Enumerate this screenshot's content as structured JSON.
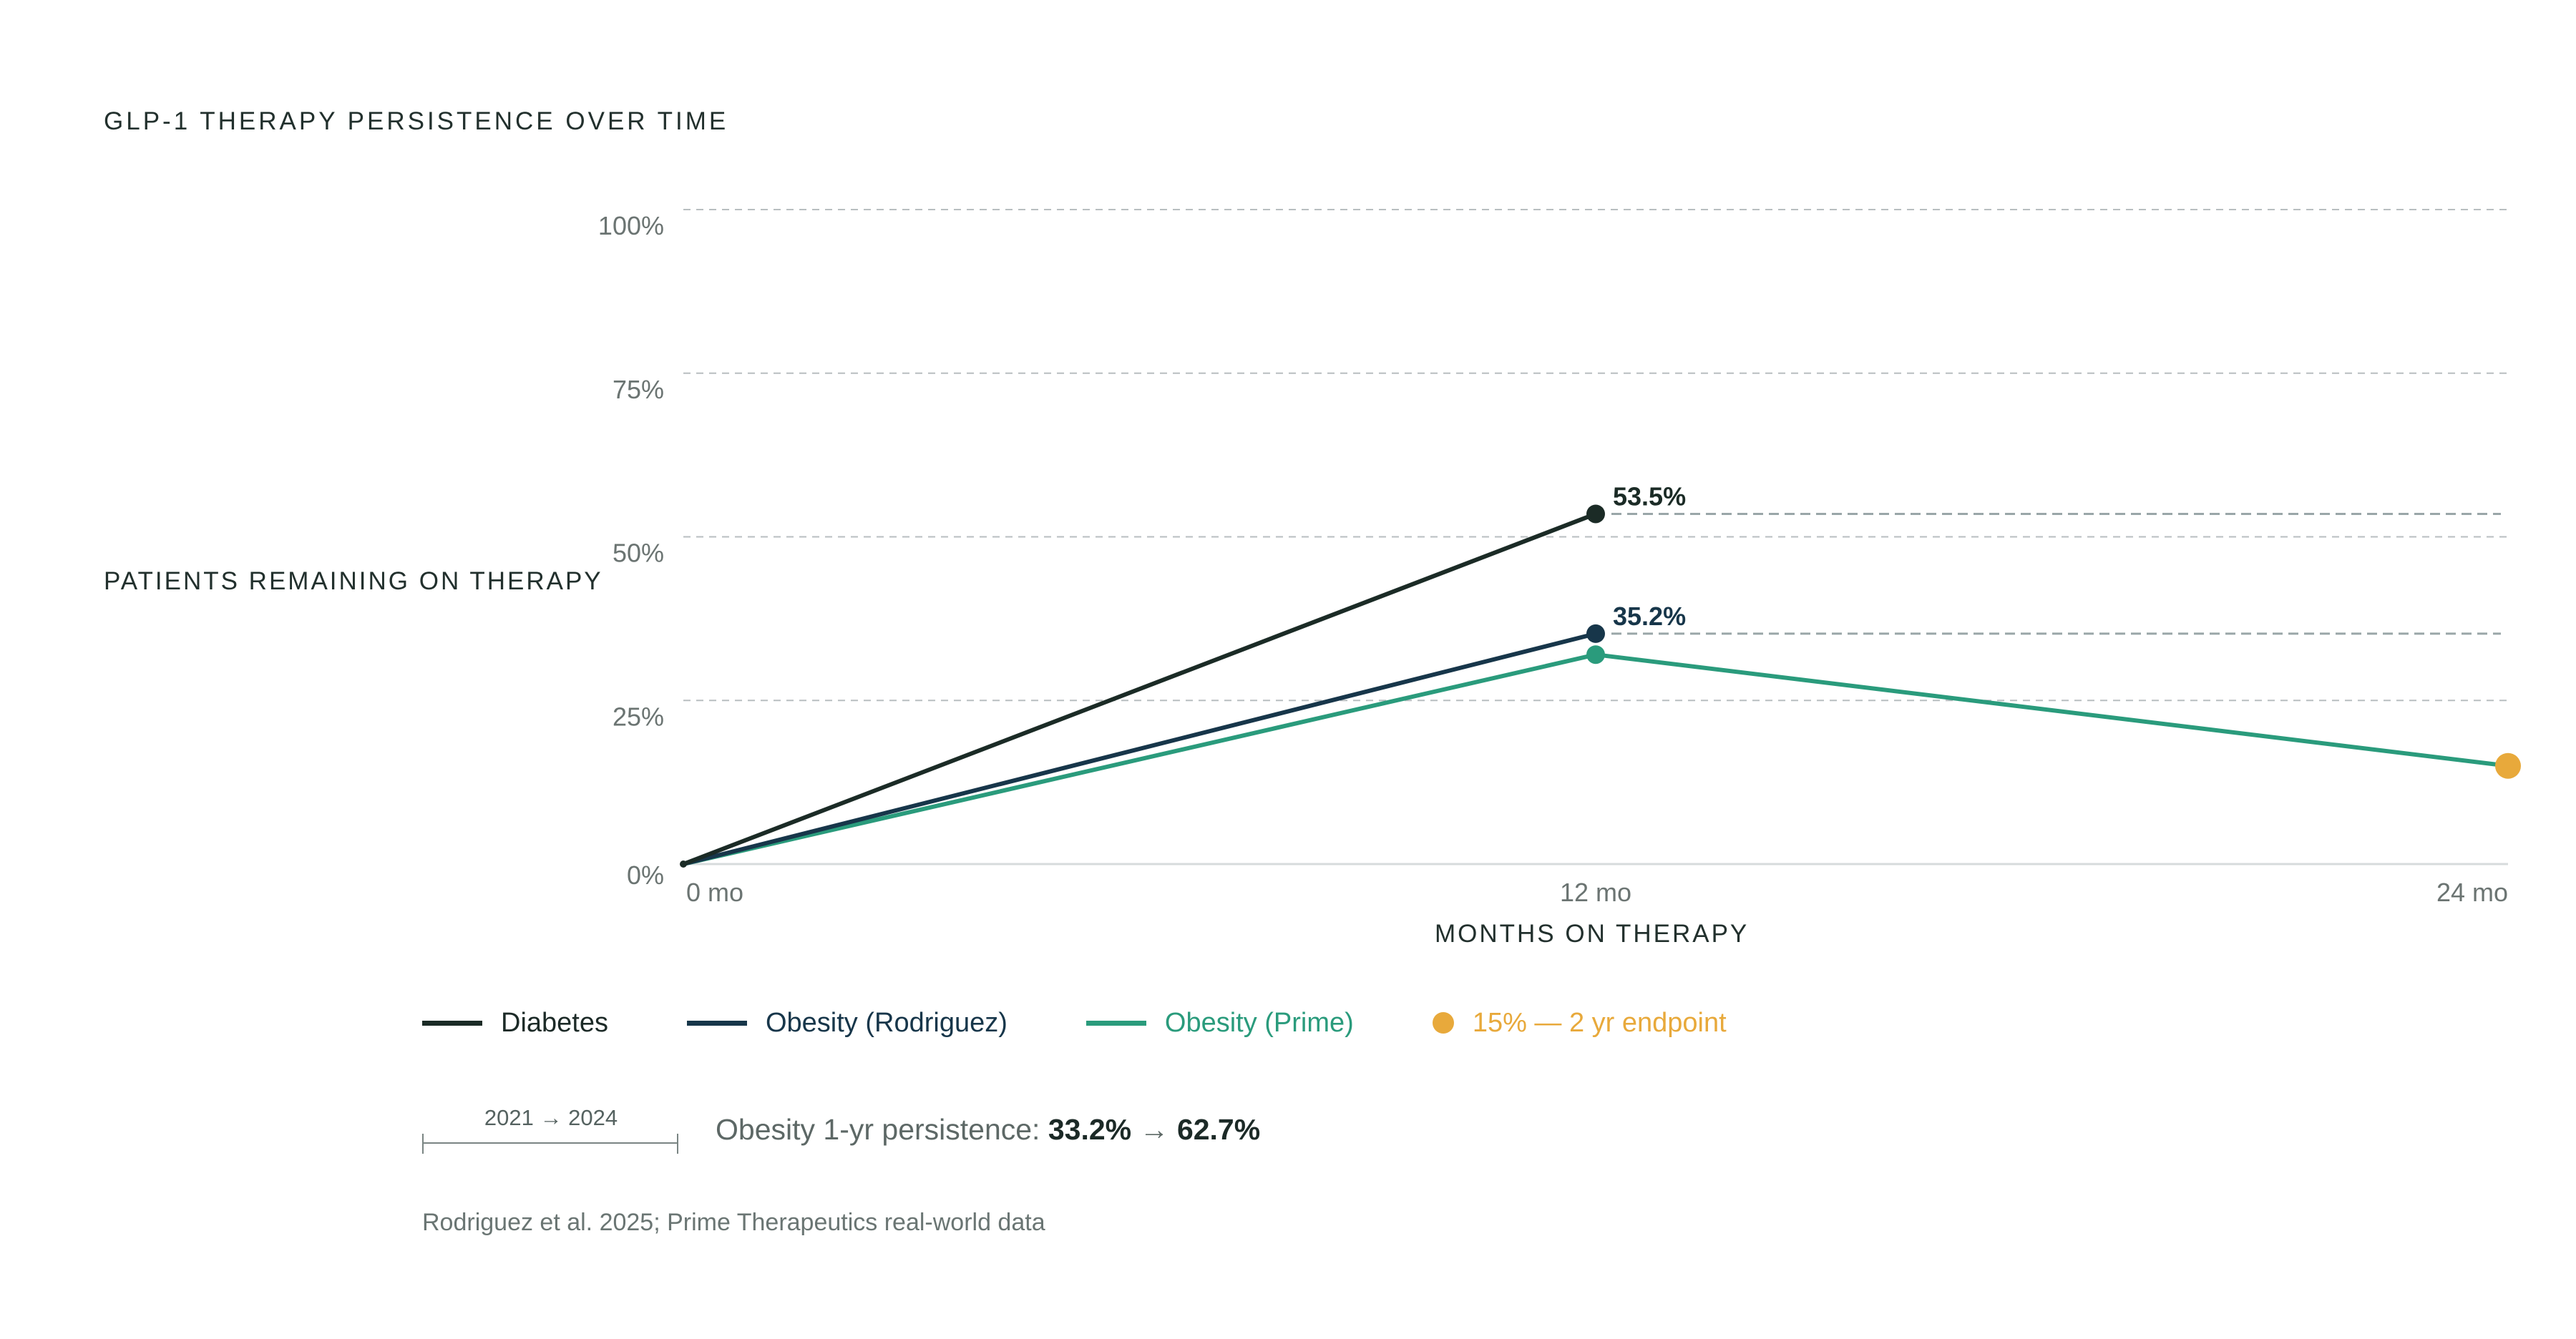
{
  "title": "GLP-1 THERAPY PERSISTENCE OVER TIME",
  "colors": {
    "diabetes": "#1b2b26",
    "obesity_rodriguez": "#17364a",
    "obesity_prime": "#2a9b7c",
    "endpoint": "#e8a93b",
    "grid": "#b8bec0",
    "tick_text": "#6b7472"
  },
  "chart_data": {
    "type": "line",
    "ylabel": "PATIENTS REMAINING ON THERAPY",
    "xlabel": "MONTHS ON THERAPY",
    "x": [
      0,
      12,
      24
    ],
    "x_tick_labels": [
      "0 mo",
      "12 mo",
      "24 mo"
    ],
    "xlim": [
      0,
      24
    ],
    "y_ticks": [
      0,
      25,
      50,
      75,
      100
    ],
    "y_tick_labels": [
      "0%",
      "25%",
      "50%",
      "75%",
      "100%"
    ],
    "ylim": [
      0,
      100
    ],
    "grid": true,
    "series": [
      {
        "name": "Diabetes",
        "key": "diabetes",
        "values": [
          0,
          53.5,
          null
        ],
        "end_label": "53.5%"
      },
      {
        "name": "Obesity (Rodriguez)",
        "key": "obesity_rodriguez",
        "values": [
          0,
          35.2,
          null
        ],
        "end_label": "35.2%"
      },
      {
        "name": "Obesity (Prime)",
        "key": "obesity_prime",
        "values": [
          0,
          32.0,
          15.0
        ]
      }
    ],
    "endpoint": {
      "label": "15% — 2 yr endpoint",
      "x": 24,
      "y": 15
    },
    "reference_lines": [
      53.5,
      35.2
    ]
  },
  "legend": [
    {
      "label": "Diabetes",
      "key": "diabetes",
      "shape": "line"
    },
    {
      "label": "Obesity (Rodriguez)",
      "key": "obesity_rodriguez",
      "shape": "line"
    },
    {
      "label": "Obesity (Prime)",
      "key": "obesity_prime",
      "shape": "line"
    },
    {
      "label": "15% — 2 yr endpoint",
      "key": "endpoint",
      "shape": "dot"
    }
  ],
  "annotation": {
    "period": "2021 → 2024",
    "prefix": "Obesity 1-yr persistence:",
    "from": "33.2%",
    "arrow": "→",
    "to": "62.7%"
  },
  "source": "Rodriguez et al. 2025; Prime Therapeutics real-world data"
}
